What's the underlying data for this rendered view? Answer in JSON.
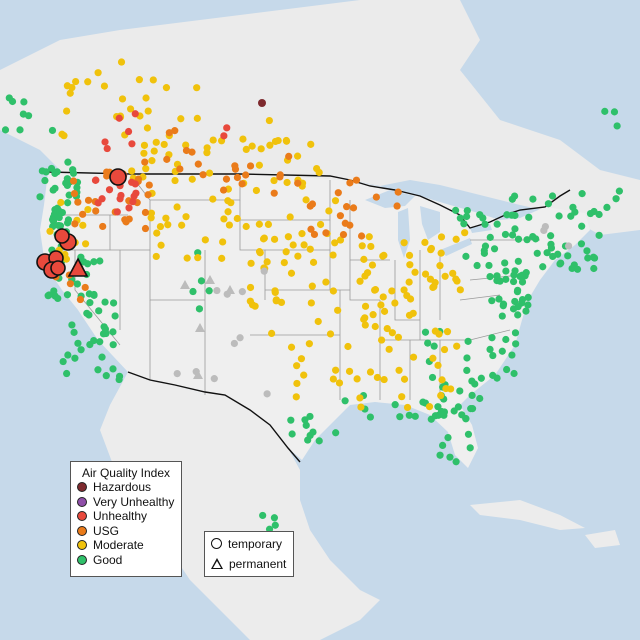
{
  "legend_aqi": {
    "title": "Air Quality Index",
    "items": [
      {
        "label": "Hazardous",
        "color": "#7e2a2e"
      },
      {
        "label": "Very Unhealthy",
        "color": "#8f4fa8"
      },
      {
        "label": "Unhealthy",
        "color": "#e8493c"
      },
      {
        "label": "USG",
        "color": "#ea7b1a"
      },
      {
        "label": "Moderate",
        "color": "#f0c20c"
      },
      {
        "label": "Good",
        "color": "#2fc06a"
      }
    ]
  },
  "legend_monitor": {
    "items": [
      {
        "label": "temporary",
        "shape": "circle"
      },
      {
        "label": "permanent",
        "shape": "triangle"
      }
    ]
  },
  "map_colors": {
    "ocean": "#c6d9ea",
    "land": "#ececec",
    "lakes": "#c6d9ea",
    "state_border": "#9a9a9a",
    "country_border": "#111111",
    "unknown_station": "#bcbcbc"
  }
}
